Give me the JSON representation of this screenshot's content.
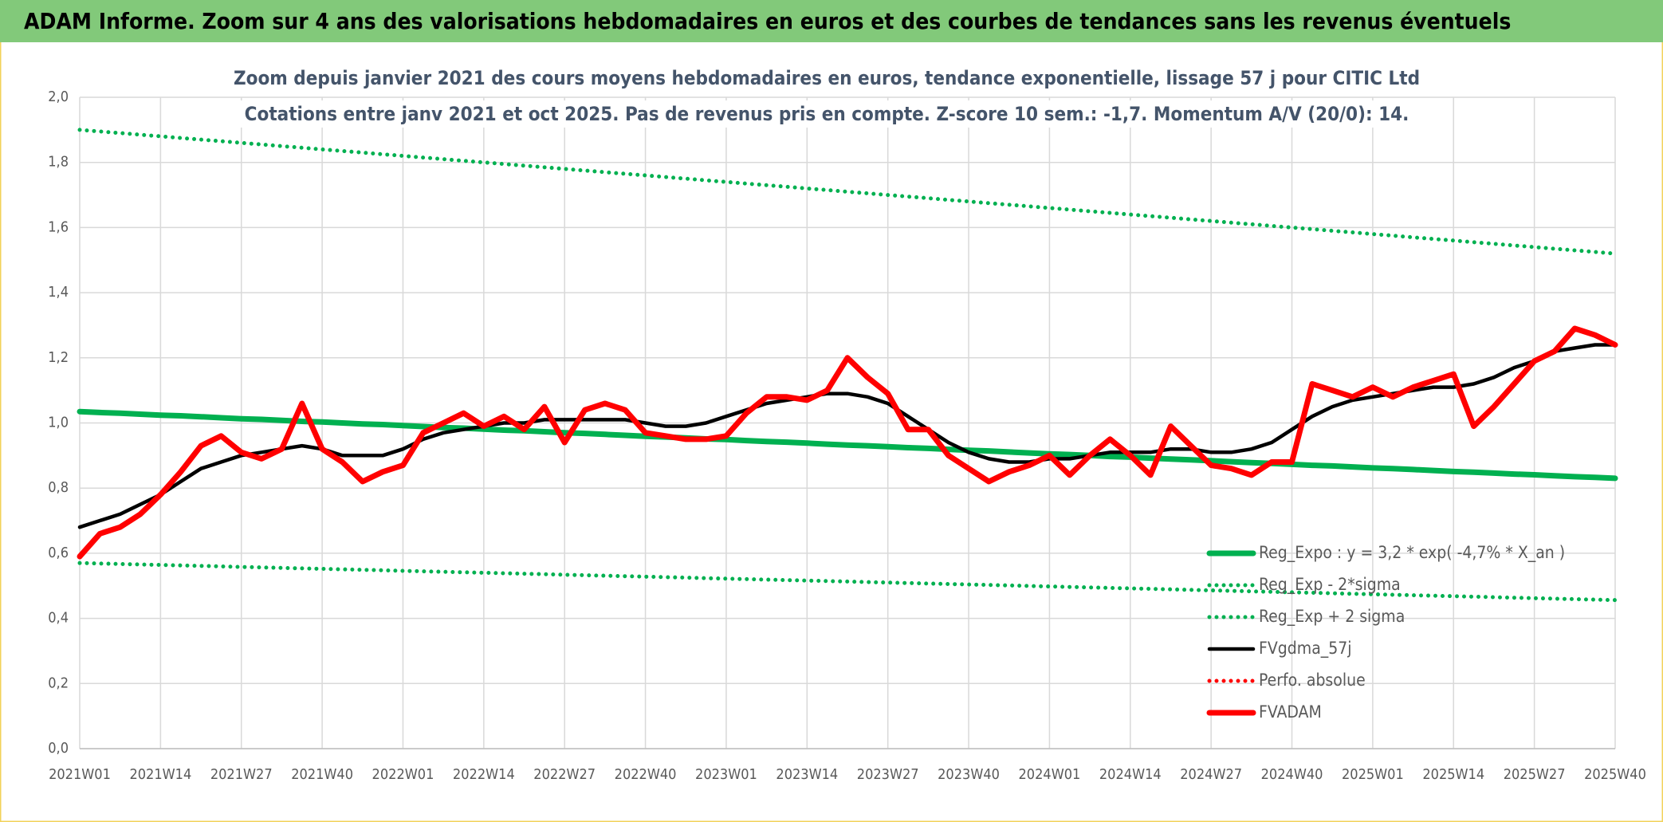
{
  "header": {
    "title": "ADAM Informe. Zoom sur 4 ans des valorisations hebdomadaires en euros et des courbes de tendances sans les revenus éventuels"
  },
  "chart_data": {
    "type": "line",
    "title": "Zoom depuis janvier 2021 des cours moyens hebdomadaires en euros, tendance exponentielle, lissage 57 j pour CITIC Ltd",
    "subtitle": "Cotations entre janv 2021 et oct 2025. Pas de revenus pris en compte. Z-score 10 sem.: -1,7. Momentum A/V (20/0): 14.",
    "categories": [
      "2021W01",
      null,
      null,
      null,
      "2021W14",
      null,
      null,
      null,
      "2021W27",
      null,
      null,
      null,
      "2021W40",
      null,
      null,
      null,
      "2022W01",
      null,
      null,
      null,
      "2022W14",
      null,
      null,
      null,
      "2022W27",
      null,
      null,
      null,
      "2022W40",
      null,
      null,
      null,
      "2023W01",
      null,
      null,
      null,
      "2023W14",
      null,
      null,
      null,
      "2023W27",
      null,
      null,
      null,
      "2023W40",
      null,
      null,
      null,
      "2024W01",
      null,
      null,
      null,
      "2024W14",
      null,
      null,
      null,
      "2024W27",
      null,
      null,
      null,
      "2024W40",
      null,
      null,
      null,
      "2025W01",
      null,
      null,
      null,
      "2025W14",
      null,
      null,
      null,
      "2025W27",
      null,
      null,
      null,
      "2025W40"
    ],
    "ylim": [
      0,
      2
    ],
    "yticks": [
      {
        "value": 0,
        "label": "0,0"
      },
      {
        "value": 0.2,
        "label": "0,2"
      },
      {
        "value": 0.4,
        "label": "0,4"
      },
      {
        "value": 0.6,
        "label": "0,6"
      },
      {
        "value": 0.8,
        "label": "0,8"
      },
      {
        "value": 1,
        "label": "1,0"
      },
      {
        "value": 1.2,
        "label": "1,2"
      },
      {
        "value": 1.4,
        "label": "1,4"
      },
      {
        "value": 1.6,
        "label": "1,6"
      },
      {
        "value": 1.8,
        "label": "1,8"
      },
      {
        "value": 2,
        "label": "2,0"
      }
    ],
    "grid": true,
    "legend": "lower right",
    "series": [
      {
        "name": "Reg_Expo : y = 3,2 * exp( -4,7% *  X_an )",
        "color": "#00b050",
        "style": "solid",
        "values": [
          1.035,
          1.032,
          1.03,
          1.027,
          1.024,
          1.022,
          1.019,
          1.016,
          1.013,
          1.011,
          1.008,
          1.005,
          1.003,
          1.0,
          0.997,
          0.995,
          0.992,
          0.989,
          0.986,
          0.984,
          0.981,
          0.978,
          0.976,
          0.973,
          0.97,
          0.968,
          0.965,
          0.962,
          0.959,
          0.957,
          0.954,
          0.951,
          0.949,
          0.946,
          0.943,
          0.941,
          0.938,
          0.935,
          0.932,
          0.93,
          0.927,
          0.924,
          0.922,
          0.919,
          0.916,
          0.914,
          0.911,
          0.908,
          0.905,
          0.903,
          0.9,
          0.897,
          0.895,
          0.892,
          0.889,
          0.887,
          0.884,
          0.881,
          0.878,
          0.876,
          0.873,
          0.87,
          0.868,
          0.865,
          0.862,
          0.86,
          0.857,
          0.854,
          0.851,
          0.849,
          0.846,
          0.843,
          0.841,
          0.838,
          0.835,
          0.833,
          0.83
        ]
      },
      {
        "name": "Reg_Exp - 2*sigma",
        "color": "#00b050",
        "style": "dotted",
        "values": [
          0.57,
          0.5685,
          0.567,
          0.5655,
          0.564,
          0.5625,
          0.561,
          0.5595,
          0.558,
          0.5565,
          0.555,
          0.5535,
          0.552,
          0.5505,
          0.549,
          0.5475,
          0.546,
          0.5445,
          0.543,
          0.5415,
          0.54,
          0.5385,
          0.537,
          0.5355,
          0.534,
          0.5325,
          0.531,
          0.5295,
          0.528,
          0.5265,
          0.525,
          0.5235,
          0.522,
          0.5205,
          0.519,
          0.5175,
          0.516,
          0.5145,
          0.513,
          0.5115,
          0.51,
          0.5085,
          0.507,
          0.5055,
          0.504,
          0.5025,
          0.501,
          0.4995,
          0.498,
          0.4965,
          0.495,
          0.4935,
          0.492,
          0.4905,
          0.489,
          0.4875,
          0.486,
          0.4845,
          0.483,
          0.4815,
          0.48,
          0.4785,
          0.477,
          0.4755,
          0.474,
          0.4725,
          0.471,
          0.4695,
          0.468,
          0.4665,
          0.465,
          0.4635,
          0.462,
          0.4605,
          0.459,
          0.4575,
          0.456
        ]
      },
      {
        "name": "Reg_Exp + 2 sigma",
        "color": "#00b050",
        "style": "dotted",
        "values": [
          1.9,
          1.895,
          1.89,
          1.885,
          1.88,
          1.875,
          1.87,
          1.865,
          1.86,
          1.855,
          1.85,
          1.845,
          1.84,
          1.835,
          1.83,
          1.825,
          1.82,
          1.815,
          1.81,
          1.805,
          1.8,
          1.795,
          1.79,
          1.785,
          1.78,
          1.775,
          1.77,
          1.765,
          1.76,
          1.755,
          1.75,
          1.745,
          1.74,
          1.735,
          1.73,
          1.725,
          1.72,
          1.715,
          1.71,
          1.705,
          1.7,
          1.695,
          1.69,
          1.685,
          1.68,
          1.675,
          1.67,
          1.665,
          1.66,
          1.655,
          1.65,
          1.645,
          1.64,
          1.635,
          1.63,
          1.625,
          1.62,
          1.615,
          1.61,
          1.605,
          1.6,
          1.595,
          1.59,
          1.585,
          1.58,
          1.575,
          1.57,
          1.565,
          1.56,
          1.555,
          1.55,
          1.545,
          1.54,
          1.535,
          1.53,
          1.525,
          1.52
        ]
      },
      {
        "name": "FVgdma_57j",
        "color": "#000000",
        "style": "solid",
        "values": [
          0.68,
          0.7,
          0.72,
          0.75,
          0.78,
          0.82,
          0.86,
          0.88,
          0.9,
          0.91,
          0.92,
          0.93,
          0.92,
          0.9,
          0.9,
          0.9,
          0.92,
          0.95,
          0.97,
          0.98,
          0.99,
          1.0,
          1.0,
          1.01,
          1.01,
          1.01,
          1.01,
          1.01,
          1.0,
          0.99,
          0.99,
          1.0,
          1.02,
          1.04,
          1.06,
          1.07,
          1.08,
          1.09,
          1.09,
          1.08,
          1.06,
          1.02,
          0.98,
          0.94,
          0.91,
          0.89,
          0.88,
          0.88,
          0.89,
          0.89,
          0.9,
          0.91,
          0.91,
          0.91,
          0.92,
          0.92,
          0.91,
          0.91,
          0.92,
          0.94,
          0.98,
          1.02,
          1.05,
          1.07,
          1.08,
          1.09,
          1.1,
          1.11,
          1.11,
          1.12,
          1.14,
          1.17,
          1.19,
          1.22,
          1.23,
          1.24,
          1.24
        ]
      },
      {
        "name": "Perfo. absolue",
        "color": "#ff0000",
        "style": "dotted",
        "values": [
          null,
          null,
          null,
          null,
          null,
          null,
          null,
          null,
          null,
          null,
          null,
          null,
          null,
          null,
          null,
          null,
          null,
          null,
          null,
          null,
          null,
          null,
          null,
          null,
          null,
          null,
          null,
          null,
          null,
          null,
          null,
          null,
          null,
          null,
          null,
          null,
          null,
          null,
          null,
          null,
          null,
          null,
          null,
          null,
          null,
          null,
          null,
          null,
          null,
          null,
          null,
          null,
          null,
          null,
          null,
          null,
          null,
          null,
          null,
          null,
          null,
          null,
          null,
          null,
          null,
          null,
          null,
          null,
          null,
          null,
          null,
          null,
          null,
          null,
          null,
          null,
          null
        ]
      },
      {
        "name": "FVADAM",
        "color": "#ff0000",
        "style": "solid",
        "values": [
          0.59,
          0.66,
          0.68,
          0.72,
          0.78,
          0.85,
          0.93,
          0.96,
          0.91,
          0.89,
          0.92,
          1.06,
          0.92,
          0.88,
          0.82,
          0.85,
          0.87,
          0.97,
          1.0,
          1.03,
          0.99,
          1.02,
          0.98,
          1.05,
          0.94,
          1.04,
          1.06,
          1.04,
          0.97,
          0.96,
          0.95,
          0.95,
          0.96,
          1.03,
          1.08,
          1.08,
          1.07,
          1.1,
          1.2,
          1.14,
          1.09,
          0.98,
          0.98,
          0.9,
          0.86,
          0.82,
          0.85,
          0.87,
          0.9,
          0.84,
          0.9,
          0.95,
          0.9,
          0.84,
          0.99,
          0.93,
          0.87,
          0.86,
          0.84,
          0.88,
          0.88,
          1.12,
          1.1,
          1.08,
          1.11,
          1.08,
          1.11,
          1.13,
          1.15,
          0.99,
          1.05,
          1.12,
          1.19,
          1.22,
          1.29,
          1.27,
          1.24
        ]
      }
    ]
  }
}
